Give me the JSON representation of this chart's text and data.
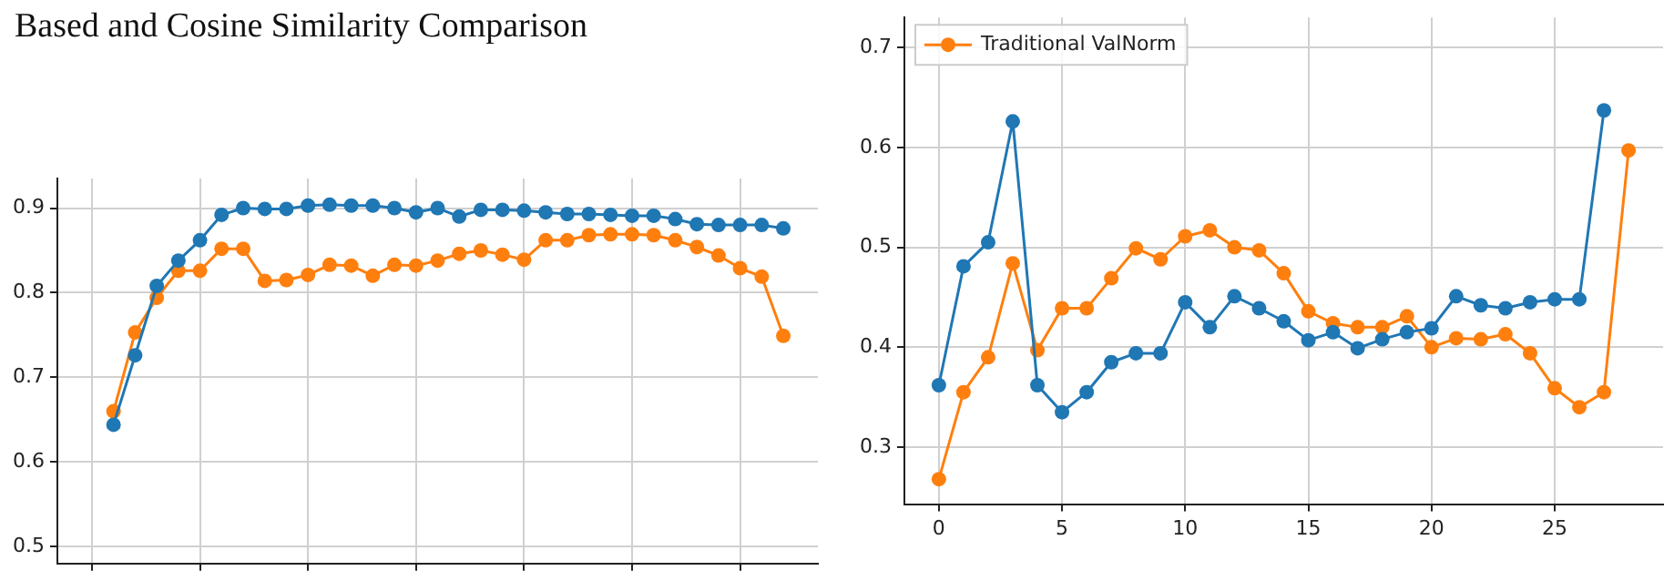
{
  "chart_data": [
    {
      "type": "line",
      "annotations": [
        "Based and Cosine Similarity Comparison"
      ],
      "categories": [
        null,
        null,
        null,
        null,
        null,
        null,
        null,
        null,
        null,
        null,
        null,
        null,
        null,
        null,
        null,
        null,
        null,
        null,
        null,
        null,
        null,
        null,
        null,
        null,
        null,
        null,
        null,
        null,
        null,
        null,
        null,
        null,
        null
      ],
      "ylim": [
        0.48,
        0.935
      ],
      "yticks": [
        0.5,
        0.6,
        0.7,
        0.8,
        0.9
      ],
      "tick_labels": "y",
      "grid": true,
      "marker": "circle",
      "series": [
        {
          "color": "#1f77b4",
          "values": [
            null,
            0.644,
            0.726,
            0.808,
            0.838,
            0.862,
            0.892,
            0.9,
            0.899,
            0.899,
            0.903,
            0.904,
            0.903,
            0.903,
            0.9,
            0.895,
            0.9,
            0.89,
            0.898,
            0.898,
            0.897,
            0.895,
            0.893,
            0.893,
            0.892,
            0.891,
            0.891,
            0.887,
            0.881,
            0.88,
            0.88,
            0.88,
            0.876
          ]
        },
        {
          "color": "#ff7f0e",
          "values": [
            null,
            0.66,
            0.753,
            0.794,
            0.826,
            0.826,
            0.852,
            0.852,
            0.814,
            0.815,
            0.821,
            0.833,
            0.832,
            0.82,
            0.833,
            0.832,
            0.838,
            0.846,
            0.85,
            0.845,
            0.839,
            0.862,
            0.862,
            0.868,
            0.869,
            0.869,
            0.868,
            0.862,
            0.854,
            0.844,
            0.829,
            0.819,
            0.749
          ]
        }
      ]
    },
    {
      "type": "line",
      "x": [
        0,
        1,
        2,
        3,
        4,
        5,
        6,
        7,
        8,
        9,
        10,
        11,
        12,
        13,
        14,
        15,
        16,
        17,
        18,
        19,
        20,
        21,
        22,
        23,
        24,
        25,
        26,
        27,
        28
      ],
      "xlim": [
        -1.4,
        29.4
      ],
      "xticks": [
        0,
        5,
        10,
        15,
        20,
        25
      ],
      "ylim": [
        0.243,
        0.73
      ],
      "yticks": [
        0.3,
        0.4,
        0.5,
        0.6,
        0.7
      ],
      "grid": true,
      "marker": "circle",
      "legend": "top left",
      "series": [
        {
          "color": "#1f77b4",
          "values": [
            0.362,
            0.481,
            0.505,
            0.626,
            0.362,
            0.335,
            0.355,
            0.385,
            0.394,
            0.394,
            0.445,
            0.42,
            0.451,
            0.439,
            0.426,
            0.407,
            0.415,
            0.399,
            0.408,
            0.415,
            0.419,
            0.451,
            0.442,
            0.439,
            0.445,
            0.448,
            0.448,
            0.637,
            null
          ]
        },
        {
          "name": "Traditional ValNorm",
          "color": "#ff7f0e",
          "values": [
            0.268,
            0.355,
            0.39,
            0.484,
            0.397,
            0.439,
            0.439,
            0.469,
            0.499,
            0.488,
            0.511,
            0.517,
            0.5,
            0.497,
            0.474,
            0.436,
            0.424,
            0.42,
            0.42,
            0.431,
            0.4,
            0.409,
            0.408,
            0.413,
            0.394,
            0.359,
            0.34,
            0.355,
            0.597
          ]
        }
      ]
    }
  ]
}
